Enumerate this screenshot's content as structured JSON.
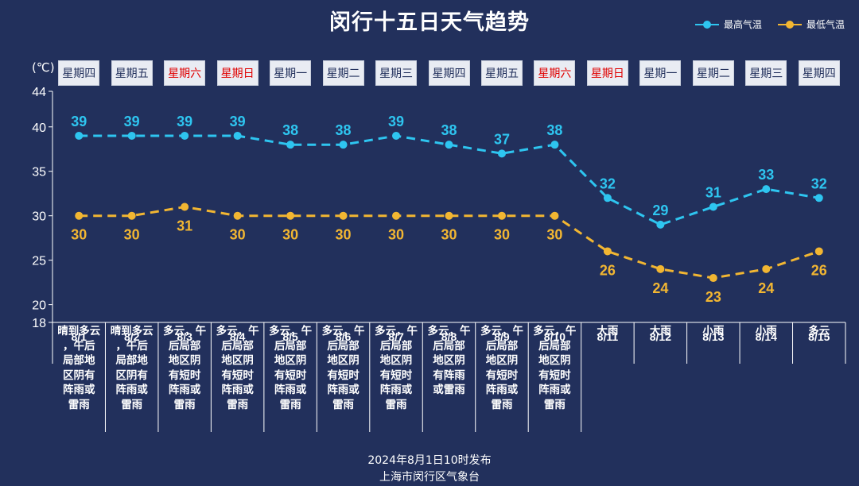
{
  "title": "闵行十五日天气趋势",
  "legend": [
    {
      "name": "最高气温",
      "color": "#2ec5f0"
    },
    {
      "name": "最低气温",
      "color": "#f2b632"
    }
  ],
  "unit": "(℃)",
  "weekdays": [
    "星期四",
    "星期五",
    "星期六",
    "星期日",
    "星期一",
    "星期二",
    "星期三",
    "星期四",
    "星期五",
    "星期六",
    "星期日",
    "星期一",
    "星期二",
    "星期三",
    "星期四"
  ],
  "weekend_flags": [
    false,
    false,
    true,
    true,
    false,
    false,
    false,
    false,
    false,
    true,
    true,
    false,
    false,
    false,
    false
  ],
  "conditions": [
    [
      "晴到多云",
      "，午后",
      "局部地",
      "区阴有",
      "阵雨或",
      "雷雨"
    ],
    [
      "晴到多云",
      "，午后",
      "局部地",
      "区阴有",
      "阵雨或",
      "雷雨"
    ],
    [
      "多云，午",
      "后局部",
      "地区阴",
      "有短时",
      "阵雨或",
      "雷雨"
    ],
    [
      "多云，午",
      "后局部",
      "地区阴",
      "有短时",
      "阵雨或",
      "雷雨"
    ],
    [
      "多云，午",
      "后局部",
      "地区阴",
      "有短时",
      "阵雨或",
      "雷雨"
    ],
    [
      "多云，午",
      "后局部",
      "地区阴",
      "有短时",
      "阵雨或",
      "雷雨"
    ],
    [
      "多云，午",
      "后局部",
      "地区阴",
      "有短时",
      "阵雨或",
      "雷雨"
    ],
    [
      "多云，午",
      "后局部",
      "地区阴",
      "有阵雨",
      "或雷雨"
    ],
    [
      "多云，午",
      "后局部",
      "地区阴",
      "有短时",
      "阵雨或",
      "雷雨"
    ],
    [
      "多云，午",
      "后局部",
      "地区阴",
      "有短时",
      "阵雨或",
      "雷雨"
    ],
    [
      "大雨"
    ],
    [
      "大雨"
    ],
    [
      "小雨"
    ],
    [
      "小雨"
    ],
    [
      "多云"
    ]
  ],
  "footer": {
    "line1": "2024年8月1日10时发布",
    "line2": "上海市闵行区气象台"
  },
  "chart_data": {
    "type": "line",
    "title": "闵行十五日天气趋势",
    "categories": [
      "8/1",
      "8/2",
      "8/3",
      "8/4",
      "8/5",
      "8/6",
      "8/7",
      "8/8",
      "8/9",
      "8/10",
      "8/11",
      "8/12",
      "8/13",
      "8/14",
      "8/15"
    ],
    "series": [
      {
        "name": "最高气温",
        "color": "#2ec5f0",
        "values": [
          39,
          39,
          39,
          39,
          38,
          38,
          39,
          38,
          37,
          38,
          32,
          29,
          31,
          33,
          32
        ]
      },
      {
        "name": "最低气温",
        "color": "#f2b632",
        "values": [
          30,
          30,
          31,
          30,
          30,
          30,
          30,
          30,
          30,
          30,
          26,
          24,
          23,
          24,
          26
        ]
      }
    ],
    "ylabel": "(℃)",
    "yticks": [
      18,
      20,
      25,
      30,
      35,
      40,
      44
    ],
    "ylim": [
      18,
      44
    ],
    "grid": false,
    "legend_position": "top-right",
    "line_style": "dashed"
  }
}
